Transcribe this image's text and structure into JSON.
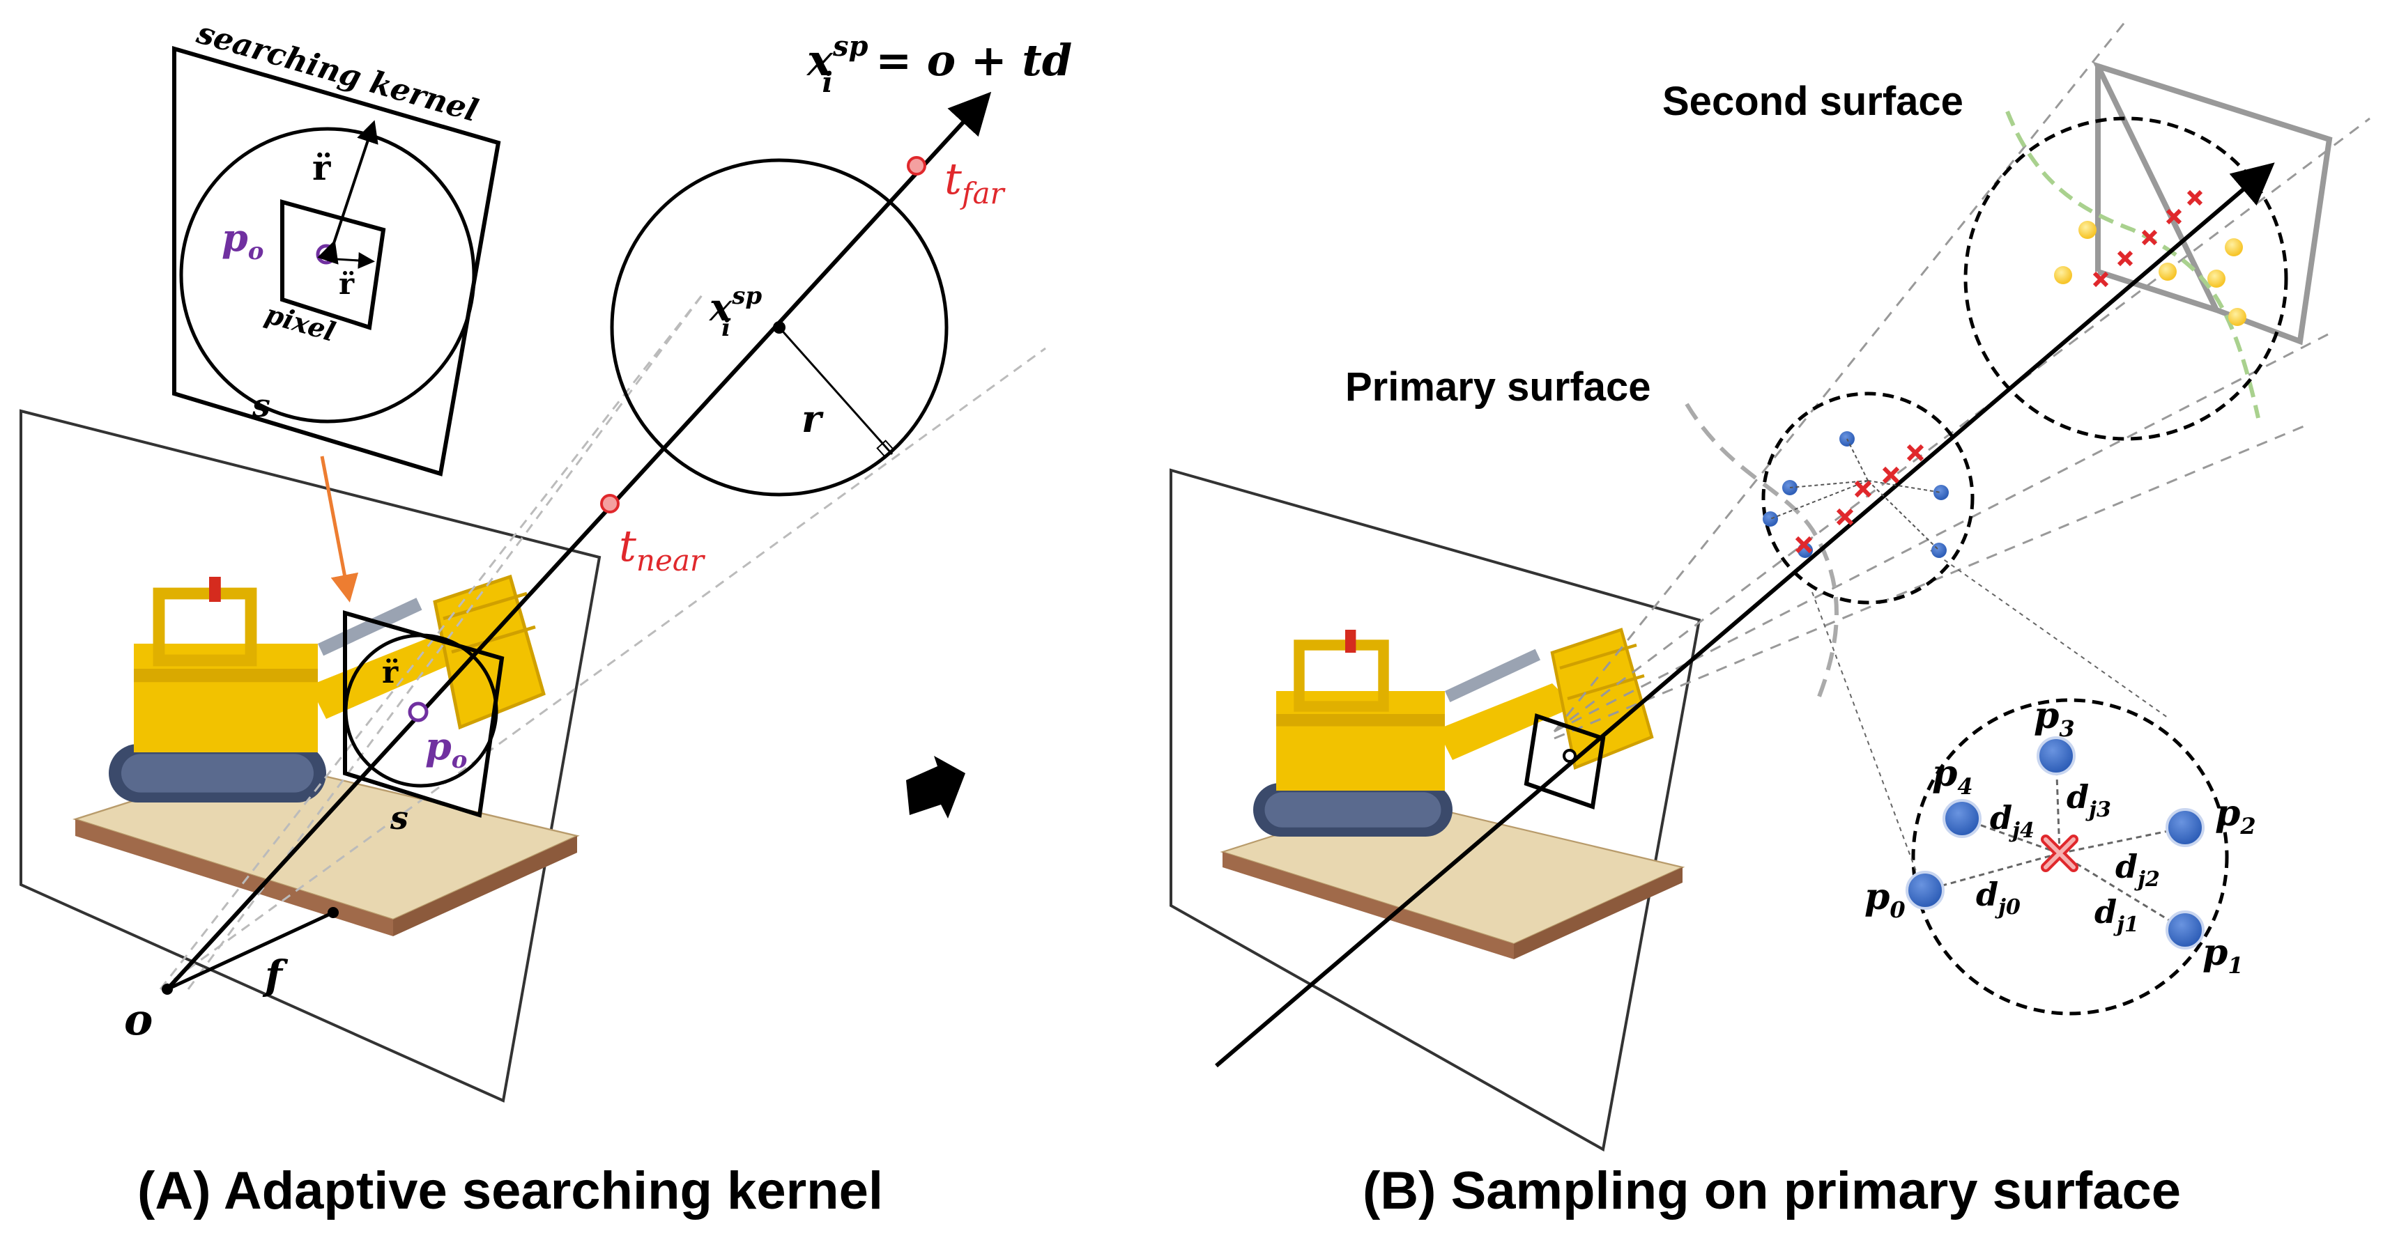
{
  "panel_a": {
    "kernel_label": "searching kernel",
    "pixel_label": "pixel",
    "po_label": "p",
    "po_sub": "o",
    "r_label": "r̈",
    "s_label": "s",
    "ray_eq_x": "x",
    "ray_eq_sup": "sp",
    "ray_eq_sub": "i",
    "ray_eq_rhs": " = o + td",
    "t_far": "t",
    "t_far_sub": "far",
    "t_near": "t",
    "t_near_sub": "near",
    "x_label": "x",
    "x_sup": "sp",
    "x_sub": "i",
    "radius_label": "r",
    "origin_label": "o",
    "focal_label": "f",
    "caption": "(A) Adaptive searching kernel"
  },
  "panel_b": {
    "second_surface": "Second surface",
    "primary_surface": "Primary surface",
    "points": [
      {
        "p": "p",
        "sub": "3"
      },
      {
        "p": "p",
        "sub": "4"
      },
      {
        "p": "p",
        "sub": "2"
      },
      {
        "p": "p",
        "sub": "0"
      },
      {
        "p": "p",
        "sub": "1"
      }
    ],
    "distances": [
      {
        "d": "d",
        "sub": "j3"
      },
      {
        "d": "d",
        "sub": "j4"
      },
      {
        "d": "d",
        "sub": "j2"
      },
      {
        "d": "d",
        "sub": "j0"
      },
      {
        "d": "d",
        "sub": "j1"
      }
    ],
    "caption": "(B) Sampling on primary surface"
  },
  "colors": {
    "red": "#e0282c",
    "purple": "#7030a0",
    "blue": "#4472c4",
    "orange": "#ed7d31",
    "yellow": "#ffd54a",
    "green": "#a9d18e"
  },
  "icons": [
    "lego-bulldozer-image",
    "arrow-right-icon"
  ]
}
